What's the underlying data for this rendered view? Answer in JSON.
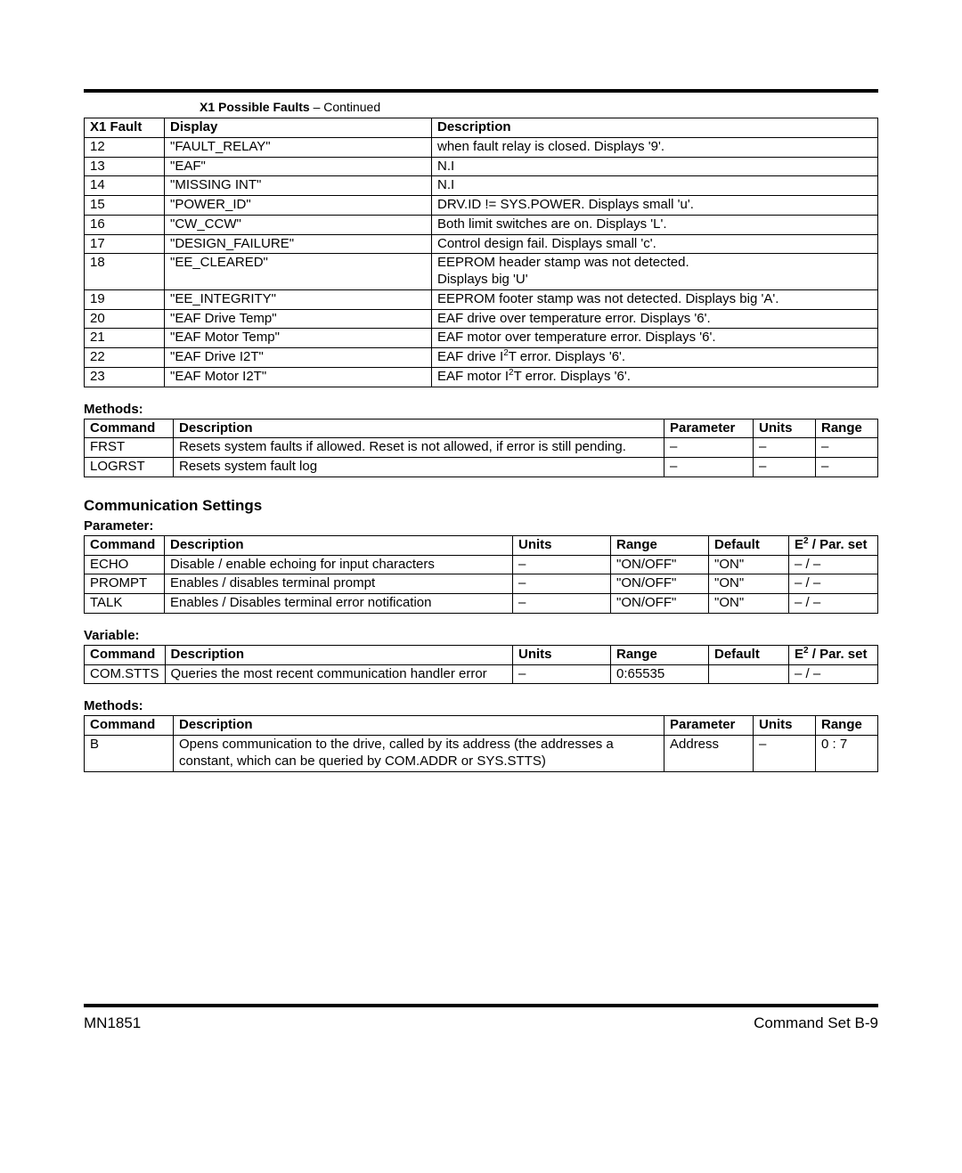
{
  "caption": {
    "title": "X1 Possible Faults",
    "suffix": " – Continued"
  },
  "faults": {
    "headers": [
      "X1 Fault",
      "Display",
      "Description"
    ],
    "colWidths": [
      "90px",
      "300px",
      "auto"
    ],
    "rows": [
      [
        "12",
        "\"FAULT_RELAY\"",
        "when fault relay is closed. Displays '9'."
      ],
      [
        "13",
        "\"EAF\"",
        "N.I"
      ],
      [
        "14",
        "\"MISSING INT\"",
        "N.I"
      ],
      [
        "15",
        "\"POWER_ID\"",
        "DRV.ID != SYS.POWER. Displays small 'u'."
      ],
      [
        "16",
        "\"CW_CCW\"",
        "Both limit switches are on.  Displays 'L'."
      ],
      [
        "17",
        "\"DESIGN_FAILURE\"",
        "Control design fail.  Displays small 'c'."
      ],
      [
        "18",
        "\"EE_CLEARED\"",
        "EEPROM header stamp was not  detected.\nDisplays big 'U'"
      ],
      [
        "19",
        "\"EE_INTEGRITY\"",
        "EEPROM footer stamp was not detected. Displays big 'A'."
      ],
      [
        "20",
        "\"EAF Drive Temp\"",
        "EAF drive over temperature error. Displays '6'."
      ],
      [
        "21",
        "\"EAF Motor Temp\"",
        "EAF motor over temperature error. Displays '6'."
      ],
      [
        "22",
        "\"EAF Drive I2T\"",
        "EAF drive I²T error. Displays '6'."
      ],
      [
        "23",
        "\"EAF Motor I2T\"",
        "EAF motor I²T error. Displays '6'."
      ]
    ]
  },
  "methods1": {
    "title": "Methods:",
    "headers": [
      "Command",
      "Description",
      "Parameter",
      "Units",
      "Range"
    ],
    "colWidths": [
      "100px",
      "auto",
      "100px",
      "70px",
      "70px"
    ],
    "rows": [
      [
        "FRST",
        "Resets system faults if allowed.  Reset is not allowed, if error is still pending.",
        "–",
        "–",
        "–"
      ],
      [
        "LOGRST",
        "Resets system fault log",
        "–",
        "–",
        "–"
      ]
    ]
  },
  "comm": {
    "section": "Communication Settings",
    "param": {
      "title": "Parameter:",
      "headers": [
        "Command",
        "Description",
        "Units",
        "Range",
        "Default",
        "E² / Par. set"
      ],
      "colWidths": [
        "90px",
        "auto",
        "110px",
        "110px",
        "90px",
        "100px"
      ],
      "rows": [
        [
          "ECHO",
          "Disable / enable echoing for input characters",
          "–",
          "\"ON/OFF\"",
          "\"ON\"",
          "– / –"
        ],
        [
          "PROMPT",
          "Enables / disables terminal prompt",
          "–",
          "\"ON/OFF\"",
          "\"ON\"",
          "– / –"
        ],
        [
          "TALK",
          "Enables / Disables terminal error notification",
          "–",
          "\"ON/OFF\"",
          "\"ON\"",
          "– / –"
        ]
      ]
    },
    "variable": {
      "title": "Variable:",
      "headers": [
        "Command",
        "Description",
        "Units",
        "Range",
        "Default",
        "E² / Par. set"
      ],
      "colWidths": [
        "90px",
        "auto",
        "110px",
        "110px",
        "90px",
        "100px"
      ],
      "rows": [
        [
          "COM.STTS",
          "Queries the most recent communication handler error",
          "–",
          "0:65535",
          "",
          "– / –"
        ]
      ]
    },
    "methods": {
      "title": "Methods:",
      "headers": [
        "Command",
        "Description",
        "Parameter",
        "Units",
        "Range"
      ],
      "colWidths": [
        "100px",
        "auto",
        "100px",
        "70px",
        "70px"
      ],
      "rows": [
        [
          "B",
          "Opens communication to the drive, called by its address (the addresses a constant, which can be queried by COM.ADDR or SYS.STTS)",
          "Address",
          "–",
          "0 : 7"
        ]
      ]
    }
  },
  "footer": {
    "left": "MN1851",
    "right": "Command Set  B-9"
  }
}
